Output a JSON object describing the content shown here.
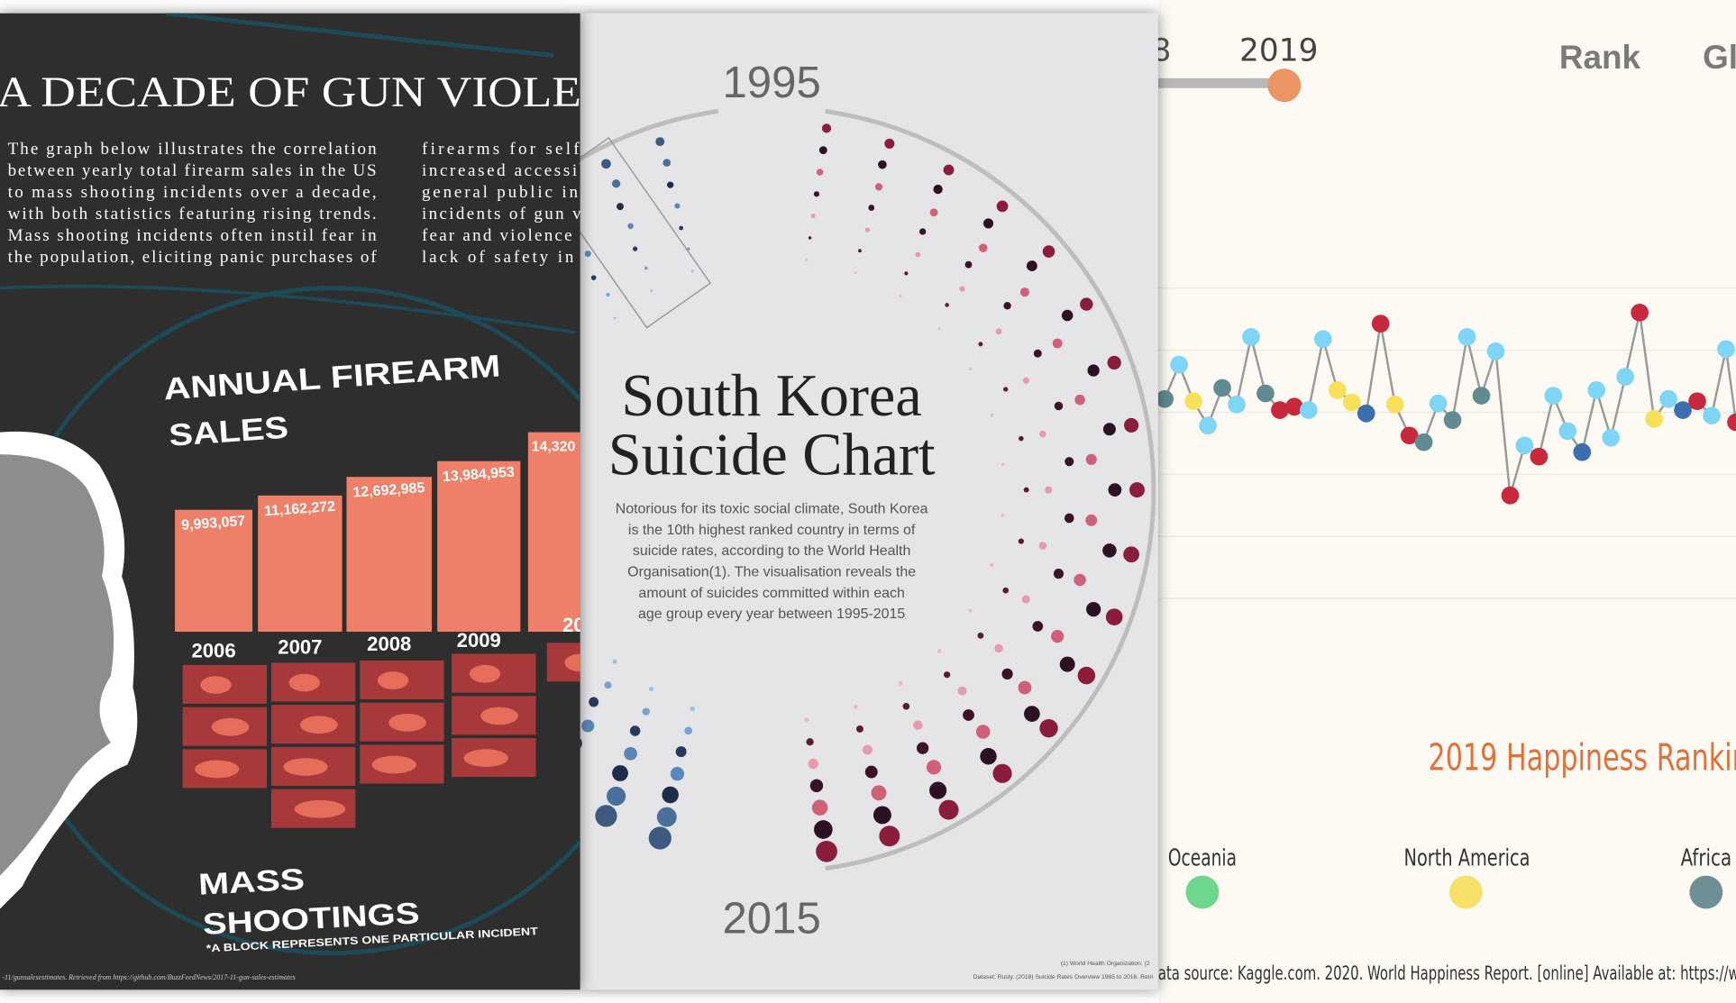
{
  "gun_panel": {
    "title": "A DECADE OF GUN VIOLE",
    "paragraph_left": [
      "The graph below illustrates the correlation",
      "between yearly total firearm sales in the US",
      "to mass shooting incidents over a decade,",
      "with both statistics featuring rising trends.",
      "Mass shooting incidents often instil fear in",
      "the population, eliciting panic purchases of"
    ],
    "paragraph_right": [
      "firearms for self-",
      "increased accessib",
      "general public ine",
      "incidents of gun vi",
      "fear and violence e",
      "lack of safety in t"
    ],
    "sales_heading": [
      "ANNUAL FIREARM",
      "SALES"
    ],
    "sales": {
      "years": [
        "2006",
        "2007",
        "2008",
        "2009"
      ],
      "values": [
        {
          "value": 9993057,
          "label": "9,993,057"
        },
        {
          "value": 11162272,
          "label": "11,162,272"
        },
        {
          "value": 12692985,
          "label": "12,692,985"
        },
        {
          "value": 13984953,
          "label": "13,984,953"
        }
      ],
      "clipped_value_label": "14,320",
      "clipped_year": "20"
    },
    "shootings_heading": [
      "MASS",
      "SHOOTINGS"
    ],
    "shootings_note": "*A BLOCK REPRESENTS ONE PARTICULAR INCIDENT",
    "source": "-11/gunsalesestimates. Retrieved from https://github.com/BuzzFeedNews/2017-11-gun-sales-estimates"
  },
  "korea_panel": {
    "year_start": "1995",
    "year_end": "2015",
    "title": [
      "South Korea",
      "Suicide Chart"
    ],
    "description": [
      "Notorious for its toxic social climate, South Korea",
      "is the 10th highest ranked country in terms of",
      "suicide rates, according to the World Health",
      "Organisation(1). The visualisation reveals the",
      "amount of suicides committed within each",
      "age group every year between 1995-2015"
    ],
    "reference": "(1) World Health Organization. (2",
    "dataset": "Dataset: Rusty. (2018) Suicide Rates Overview 1985 to 2016. Retri"
  },
  "happiness_panel": {
    "slider_prev": "8",
    "slider_year": "2019",
    "rank_label": "Rank",
    "clipped_header": "Gl",
    "title": "2019 Happiness Rankin",
    "legend": [
      "Oceania",
      "North America",
      "Africa"
    ],
    "source": "ata source: Kaggle.com. 2020. World Happiness Report. [online] Available at: https://w"
  }
}
